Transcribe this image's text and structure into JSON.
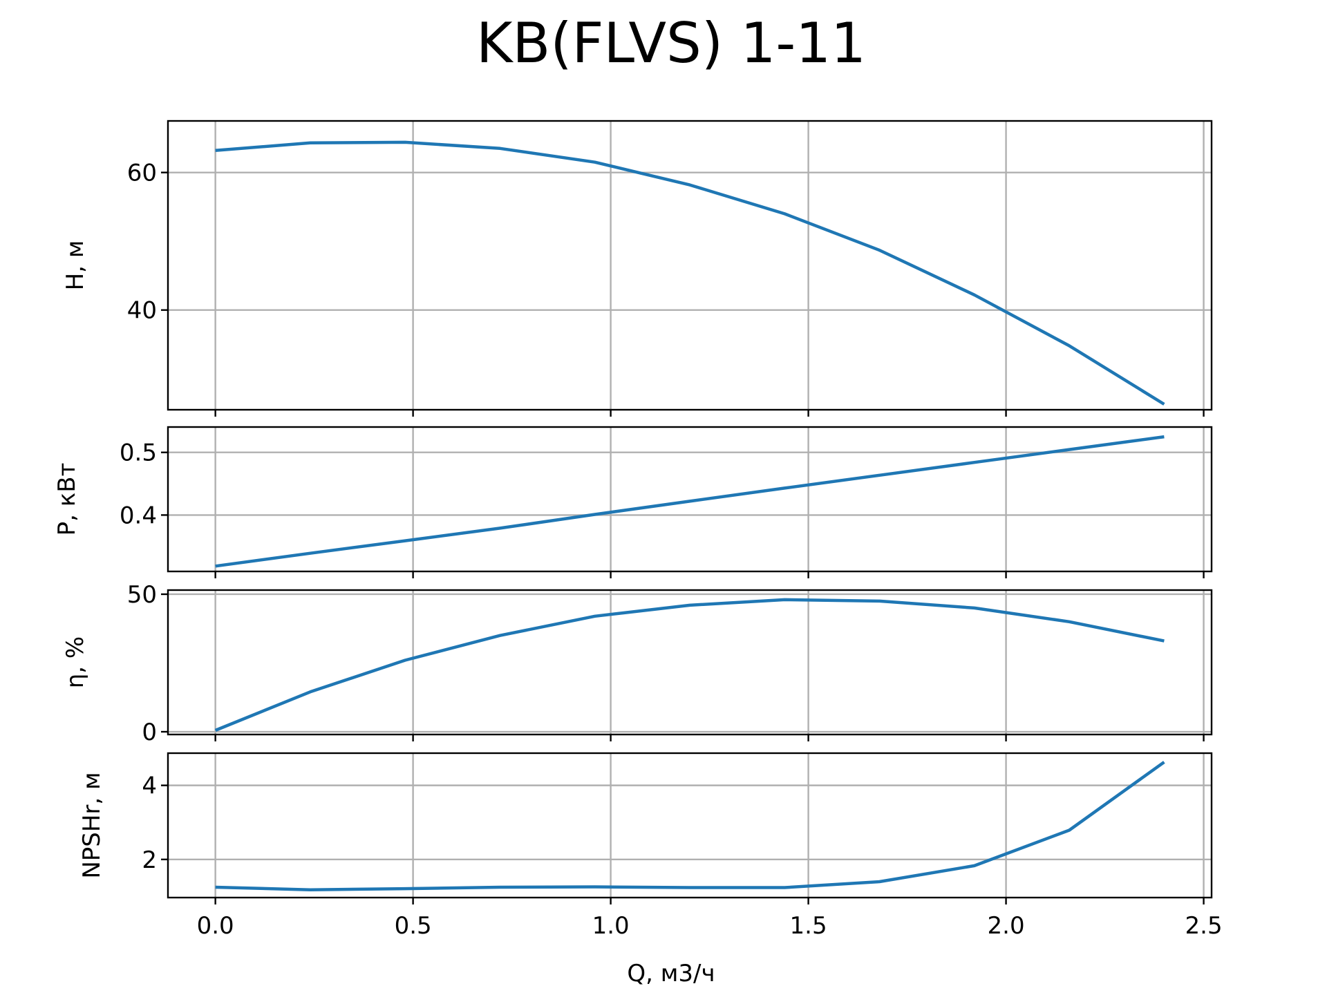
{
  "chart_data": {
    "type": "line",
    "title": "KB(FLVS) 1-11",
    "xlabel": "Q, м3/ч",
    "xlim": [
      -0.12,
      2.52
    ],
    "x_ticks": [
      "0.0",
      "0.5",
      "1.0",
      "1.5",
      "2.0",
      "2.5"
    ],
    "x_tick_values": [
      0.0,
      0.5,
      1.0,
      1.5,
      2.0,
      2.5
    ],
    "grid": true,
    "line_color": "#1f77b4",
    "x": [
      0.0,
      0.24,
      0.48,
      0.72,
      0.96,
      1.2,
      1.44,
      1.68,
      1.92,
      2.16,
      2.4
    ],
    "subplots": [
      {
        "id": "head",
        "ylabel": "H, м",
        "ylim": [
          25.5,
          67.5
        ],
        "y_ticks": [
          "40",
          "60"
        ],
        "y_tick_values": [
          40,
          60
        ],
        "values": [
          63.2,
          64.3,
          64.4,
          63.5,
          61.5,
          58.2,
          54.0,
          48.7,
          42.2,
          34.8,
          26.3
        ]
      },
      {
        "id": "power",
        "ylabel": "P, кВт",
        "ylim": [
          0.31,
          0.5405
        ],
        "y_ticks": [
          "0.4",
          "0.5"
        ],
        "y_tick_values": [
          0.4,
          0.5
        ],
        "values": [
          0.3185,
          0.339,
          0.359,
          0.379,
          0.401,
          0.422,
          0.443,
          0.4635,
          0.484,
          0.5045,
          0.525
        ]
      },
      {
        "id": "efficiency",
        "ylabel": "η, %",
        "ylim": [
          -1.0,
          51.5
        ],
        "y_ticks": [
          "0",
          "50"
        ],
        "y_tick_values": [
          0,
          50
        ],
        "values": [
          0.5,
          14.5,
          26.0,
          35.0,
          42.0,
          46.0,
          48.0,
          47.5,
          45.0,
          40.0,
          33.0
        ]
      },
      {
        "id": "npshr",
        "ylabel": "NPSHr, м",
        "ylim": [
          0.97,
          4.87
        ],
        "y_ticks": [
          "2",
          "4"
        ],
        "y_tick_values": [
          2,
          4
        ],
        "values": [
          1.25,
          1.18,
          1.21,
          1.25,
          1.26,
          1.24,
          1.24,
          1.4,
          1.83,
          2.79,
          4.63
        ]
      }
    ]
  }
}
